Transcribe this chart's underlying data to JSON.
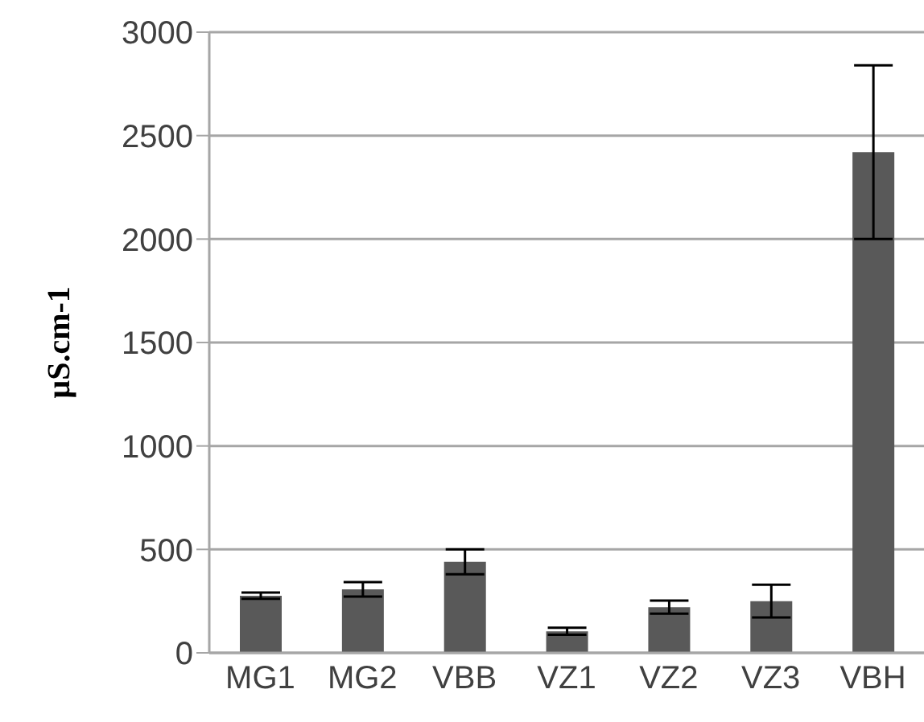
{
  "chart_data": {
    "type": "bar",
    "ylabel": "µS.cm-1",
    "categories": [
      "MG1",
      "MG2",
      "VBB",
      "VZ1",
      "VZ2",
      "VZ3",
      "VBH"
    ],
    "values": [
      276,
      307,
      440,
      104,
      221,
      250,
      2420
    ],
    "errors": [
      15,
      35,
      60,
      17,
      32,
      79,
      420
    ],
    "color": "#595959",
    "ylim": [
      0,
      3000
    ],
    "yticks": [
      0,
      500,
      1000,
      1500,
      2000,
      2500,
      3000
    ],
    "grid": "y"
  }
}
